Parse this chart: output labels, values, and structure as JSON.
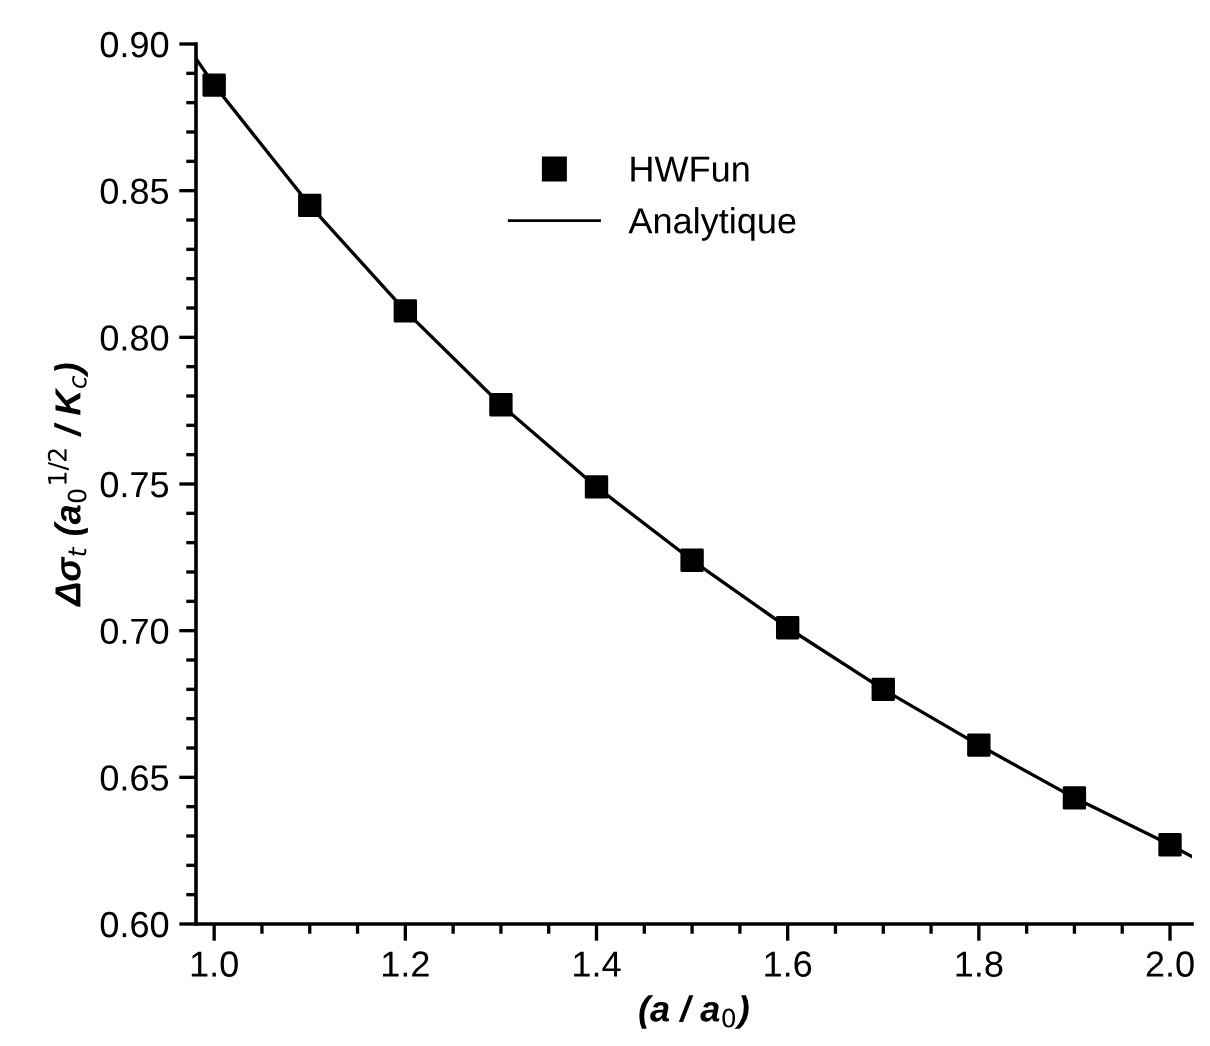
{
  "chart_data": {
    "type": "scatter",
    "xlabel": "(a / a$_{0}$)",
    "ylabel": "Δσ$_{t}$ (a$_{0}$$^{1/2}$ / K$_{c}$)",
    "xlim": [
      0.981,
      2.023
    ],
    "ylim": [
      0.6,
      0.9
    ],
    "xticks": [
      {
        "value": 1.0,
        "label": "1.0"
      },
      {
        "value": 1.05,
        "label": null
      },
      {
        "value": 1.1,
        "label": null
      },
      {
        "value": 1.15,
        "label": null
      },
      {
        "value": 1.2,
        "label": "1.2"
      },
      {
        "value": 1.25,
        "label": null
      },
      {
        "value": 1.3,
        "label": null
      },
      {
        "value": 1.35,
        "label": null
      },
      {
        "value": 1.4,
        "label": "1.4"
      },
      {
        "value": 1.45,
        "label": null
      },
      {
        "value": 1.5,
        "label": null
      },
      {
        "value": 1.55,
        "label": null
      },
      {
        "value": 1.6,
        "label": "1.6"
      },
      {
        "value": 1.65,
        "label": null
      },
      {
        "value": 1.7,
        "label": null
      },
      {
        "value": 1.75,
        "label": null
      },
      {
        "value": 1.8,
        "label": "1.8"
      },
      {
        "value": 1.85,
        "label": null
      },
      {
        "value": 1.9,
        "label": null
      },
      {
        "value": 1.95,
        "label": null
      },
      {
        "value": 2.0,
        "label": "2.0"
      }
    ],
    "yticks": [
      {
        "value": 0.6,
        "label": "0.60"
      },
      {
        "value": 0.61,
        "label": null
      },
      {
        "value": 0.62,
        "label": null
      },
      {
        "value": 0.63,
        "label": null
      },
      {
        "value": 0.64,
        "label": null
      },
      {
        "value": 0.65,
        "label": "0.65"
      },
      {
        "value": 0.66,
        "label": null
      },
      {
        "value": 0.67,
        "label": null
      },
      {
        "value": 0.68,
        "label": null
      },
      {
        "value": 0.69,
        "label": null
      },
      {
        "value": 0.7,
        "label": "0.70"
      },
      {
        "value": 0.71,
        "label": null
      },
      {
        "value": 0.72,
        "label": null
      },
      {
        "value": 0.73,
        "label": null
      },
      {
        "value": 0.74,
        "label": null
      },
      {
        "value": 0.75,
        "label": "0.75"
      },
      {
        "value": 0.76,
        "label": null
      },
      {
        "value": 0.77,
        "label": null
      },
      {
        "value": 0.78,
        "label": null
      },
      {
        "value": 0.79,
        "label": null
      },
      {
        "value": 0.8,
        "label": "0.80"
      },
      {
        "value": 0.81,
        "label": null
      },
      {
        "value": 0.82,
        "label": null
      },
      {
        "value": 0.83,
        "label": null
      },
      {
        "value": 0.84,
        "label": null
      },
      {
        "value": 0.85,
        "label": "0.85"
      },
      {
        "value": 0.86,
        "label": null
      },
      {
        "value": 0.87,
        "label": null
      },
      {
        "value": 0.88,
        "label": null
      },
      {
        "value": 0.89,
        "label": null
      },
      {
        "value": 0.9,
        "label": "0.90"
      }
    ],
    "grid": false,
    "legend": "top right",
    "series": [
      {
        "name": "HWFun",
        "marker": "square",
        "color": "#000000",
        "x": [
          1.0,
          1.1,
          1.2,
          1.3,
          1.4,
          1.5,
          1.6,
          1.7,
          1.8,
          1.9,
          2.0
        ],
        "values": [
          0.886,
          0.845,
          0.809,
          0.777,
          0.749,
          0.724,
          0.701,
          0.68,
          0.661,
          0.643,
          0.627
        ]
      },
      {
        "name": "Analytique",
        "type": "line",
        "marker": "none",
        "line_style": "solid",
        "color": "#000000",
        "x": [
          0.981,
          1.0,
          1.1,
          1.2,
          1.3,
          1.4,
          1.5,
          1.6,
          1.7,
          1.8,
          1.9,
          2.0,
          2.023
        ],
        "values": [
          0.895,
          0.886,
          0.845,
          0.809,
          0.777,
          0.749,
          0.724,
          0.701,
          0.68,
          0.661,
          0.643,
          0.627,
          0.623
        ]
      }
    ]
  }
}
